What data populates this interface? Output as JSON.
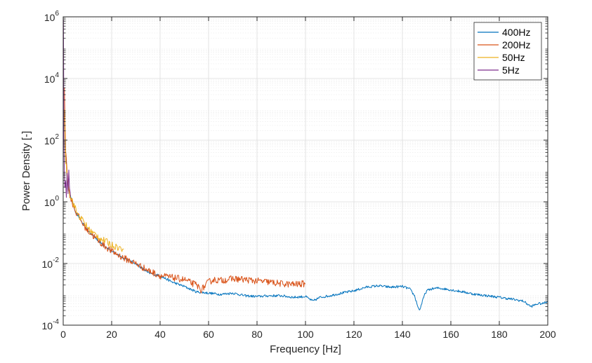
{
  "chart_data": {
    "type": "line",
    "title": "",
    "xlabel": "Frequency [Hz]",
    "ylabel": "Power Density [-]",
    "xlim": [
      0,
      200
    ],
    "ylim": [
      0.0001,
      1000000
    ],
    "yscale": "log",
    "grid": true,
    "legend_position": "top-right",
    "x_ticks": [
      0,
      20,
      40,
      60,
      80,
      100,
      120,
      140,
      160,
      180,
      200
    ],
    "x_tick_labels": [
      "0",
      "20",
      "40",
      "60",
      "80",
      "100",
      "120",
      "140",
      "160",
      "180",
      "200"
    ],
    "y_ticks": [
      0.0001,
      0.01,
      1,
      100,
      10000,
      1000000
    ],
    "y_tick_labels": [
      {
        "base": "10",
        "exp": "-4"
      },
      {
        "base": "10",
        "exp": "-2"
      },
      {
        "base": "10",
        "exp": "0"
      },
      {
        "base": "10",
        "exp": "2"
      },
      {
        "base": "10",
        "exp": "4"
      },
      {
        "base": "10",
        "exp": "6"
      }
    ],
    "series": [
      {
        "name": "400Hz",
        "color": "#0072BD",
        "x": [
          0.5,
          1,
          2,
          3,
          5,
          8,
          10,
          15,
          20,
          25,
          30,
          35,
          40,
          45,
          50,
          55,
          60,
          65,
          70,
          75,
          80,
          85,
          90,
          95,
          100,
          103,
          106,
          110,
          115,
          120,
          125,
          130,
          135,
          140,
          143,
          145,
          146,
          147,
          148,
          149,
          150,
          152,
          155,
          160,
          165,
          170,
          175,
          180,
          185,
          190,
          193,
          196,
          198,
          200
        ],
        "y": [
          1000,
          30,
          3,
          1.5,
          0.5,
          0.2,
          0.12,
          0.05,
          0.025,
          0.015,
          0.01,
          0.005,
          0.004,
          0.0025,
          0.0018,
          0.0012,
          0.0011,
          0.001,
          0.0011,
          0.0009,
          0.00085,
          0.0009,
          0.0009,
          0.0008,
          0.00085,
          0.0006,
          0.0008,
          0.0009,
          0.0011,
          0.0013,
          0.0017,
          0.0019,
          0.0017,
          0.0018,
          0.0015,
          0.0009,
          0.0005,
          0.0003,
          0.0005,
          0.0009,
          0.0013,
          0.0015,
          0.0016,
          0.0014,
          0.0012,
          0.001,
          0.0009,
          0.0008,
          0.0007,
          0.0006,
          0.0004,
          0.0005,
          0.0005,
          0.0006
        ]
      },
      {
        "name": "200Hz",
        "color": "#D95319",
        "x": [
          0.5,
          1,
          2,
          3,
          5,
          8,
          10,
          15,
          20,
          25,
          30,
          35,
          40,
          45,
          50,
          52,
          55,
          57,
          60,
          62,
          65,
          70,
          75,
          80,
          85,
          90,
          95,
          100
        ],
        "y": [
          5000,
          50,
          3,
          1.4,
          0.5,
          0.2,
          0.12,
          0.05,
          0.025,
          0.015,
          0.01,
          0.006,
          0.004,
          0.0035,
          0.003,
          0.0025,
          0.002,
          0.0014,
          0.0025,
          0.003,
          0.0028,
          0.0032,
          0.003,
          0.0027,
          0.0025,
          0.0022,
          0.0021,
          0.0022
        ]
      },
      {
        "name": "50Hz",
        "color": "#EDB120",
        "x": [
          0.5,
          1,
          2,
          3,
          4,
          5,
          6,
          8,
          10,
          12,
          14,
          16,
          18,
          20,
          22,
          24,
          25
        ],
        "y": [
          1000,
          20,
          4,
          1.5,
          1.0,
          0.6,
          0.4,
          0.25,
          0.15,
          0.1,
          0.08,
          0.06,
          0.05,
          0.04,
          0.035,
          0.03,
          0.03
        ]
      },
      {
        "name": "5Hz",
        "color": "#7E2F8E",
        "x": [
          0.1,
          0.2,
          0.3,
          0.5,
          0.7,
          1.0,
          1.3,
          1.6,
          2.0,
          2.3,
          2.6,
          3.0
        ],
        "y": [
          800000,
          10000,
          100,
          8,
          3,
          5,
          1.5,
          8,
          2,
          10,
          3,
          1.5
        ]
      }
    ]
  }
}
